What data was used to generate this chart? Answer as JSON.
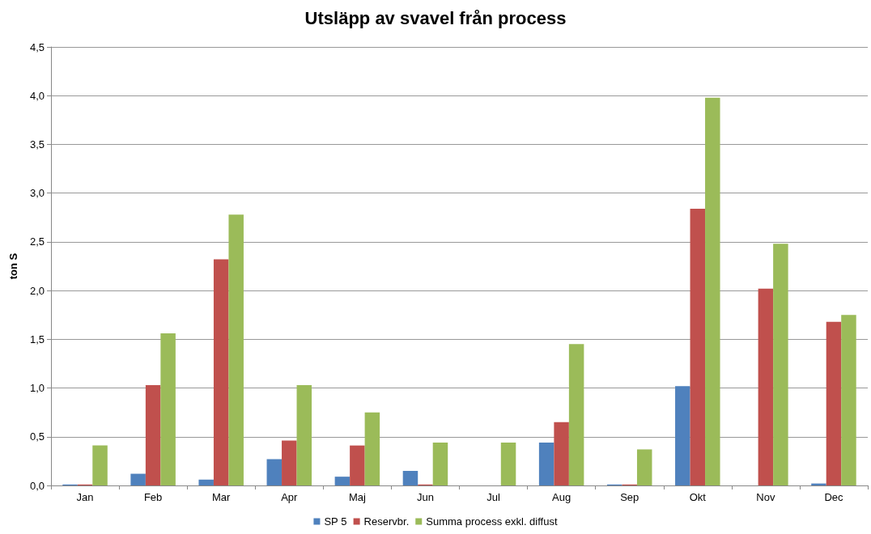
{
  "chart_data": {
    "type": "bar",
    "title": "Utsläpp av svavel från process",
    "ylabel": "ton S",
    "categories": [
      "Jan",
      "Feb",
      "Mar",
      "Apr",
      "Maj",
      "Jun",
      "Jul",
      "Aug",
      "Sep",
      "Okt",
      "Nov",
      "Dec"
    ],
    "series": [
      {
        "name": "SP 5",
        "color": "#4f81bd",
        "values": [
          0.01,
          0.12,
          0.06,
          0.27,
          0.09,
          0.15,
          0,
          0.44,
          0.01,
          1.02,
          0,
          0.02
        ]
      },
      {
        "name": "Reservbr.",
        "color": "#c0504d",
        "values": [
          0.01,
          1.03,
          2.32,
          0.46,
          0.41,
          0.01,
          0,
          0.65,
          0.01,
          2.84,
          2.02,
          1.68
        ]
      },
      {
        "name": "Summa process exkl. diffust",
        "color": "#9bbb59",
        "values": [
          0.41,
          1.56,
          2.78,
          1.03,
          0.75,
          0.44,
          0.44,
          1.45,
          0.37,
          3.98,
          2.48,
          1.75
        ]
      }
    ],
    "ylim": [
      0,
      4.5
    ],
    "yticks": [
      {
        "value": 0,
        "label": "0,0"
      },
      {
        "value": 0.5,
        "label": "0,5"
      },
      {
        "value": 1,
        "label": "1,0"
      },
      {
        "value": 1.5,
        "label": "1,5"
      },
      {
        "value": 2,
        "label": "2,0"
      },
      {
        "value": 2.5,
        "label": "2,5"
      },
      {
        "value": 3,
        "label": "3,0"
      },
      {
        "value": 3.5,
        "label": "3,5"
      },
      {
        "value": 4,
        "label": "4,0"
      },
      {
        "value": 4.5,
        "label": "4,5"
      }
    ],
    "grid": "y",
    "legend": "bottom"
  }
}
